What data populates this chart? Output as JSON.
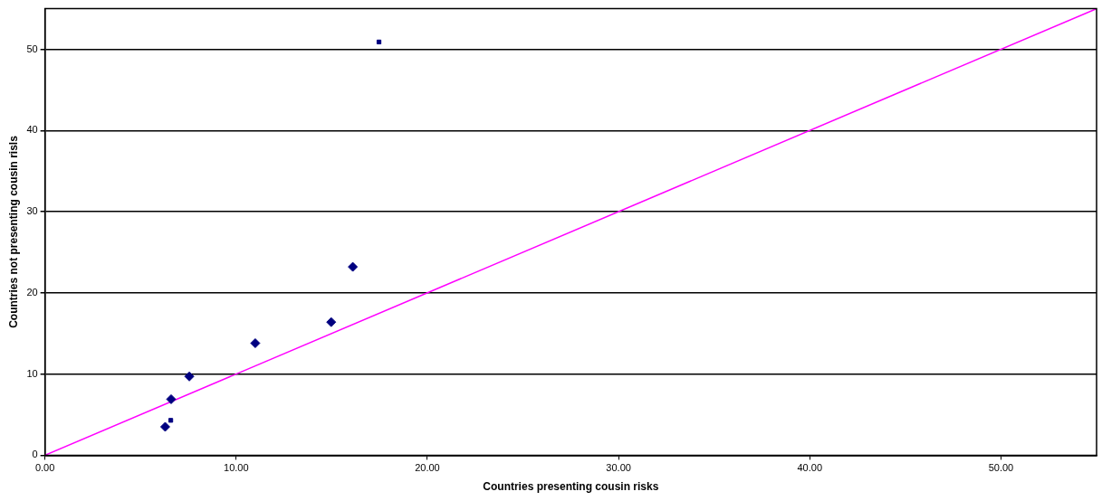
{
  "chart_data": {
    "type": "scatter",
    "xlabel": "Countries presenting cousin risks",
    "ylabel": "Countries not presenting cousin risls",
    "series": [
      {
        "type": "scatter",
        "marker": "diamond",
        "color": "#000080",
        "x": [
          6.29,
          6.6,
          7.55,
          11.0,
          14.97,
          16.1
        ],
        "values": [
          3.5,
          6.9,
          9.7,
          13.8,
          16.4,
          23.2
        ]
      },
      {
        "type": "scatter",
        "marker": "square",
        "color": "#000080",
        "x": [
          6.58,
          17.47
        ],
        "values": [
          4.3,
          50.9
        ]
      },
      {
        "type": "line",
        "marker": "none",
        "color": "#ff00ff",
        "x": [
          0,
          55
        ],
        "values": [
          0,
          55
        ]
      }
    ],
    "xlim": [
      0,
      55
    ],
    "ylim": [
      0,
      55
    ],
    "xticks": [
      {
        "value": 0,
        "label": "0.00"
      },
      {
        "value": 10,
        "label": "10.00"
      },
      {
        "value": 20,
        "label": "20.00"
      },
      {
        "value": 30,
        "label": "30.00"
      },
      {
        "value": 40,
        "label": "40.00"
      },
      {
        "value": 50,
        "label": "50.00"
      }
    ],
    "yticks": [
      0,
      10,
      20,
      30,
      40,
      50
    ],
    "grid": "y",
    "legend": false
  }
}
